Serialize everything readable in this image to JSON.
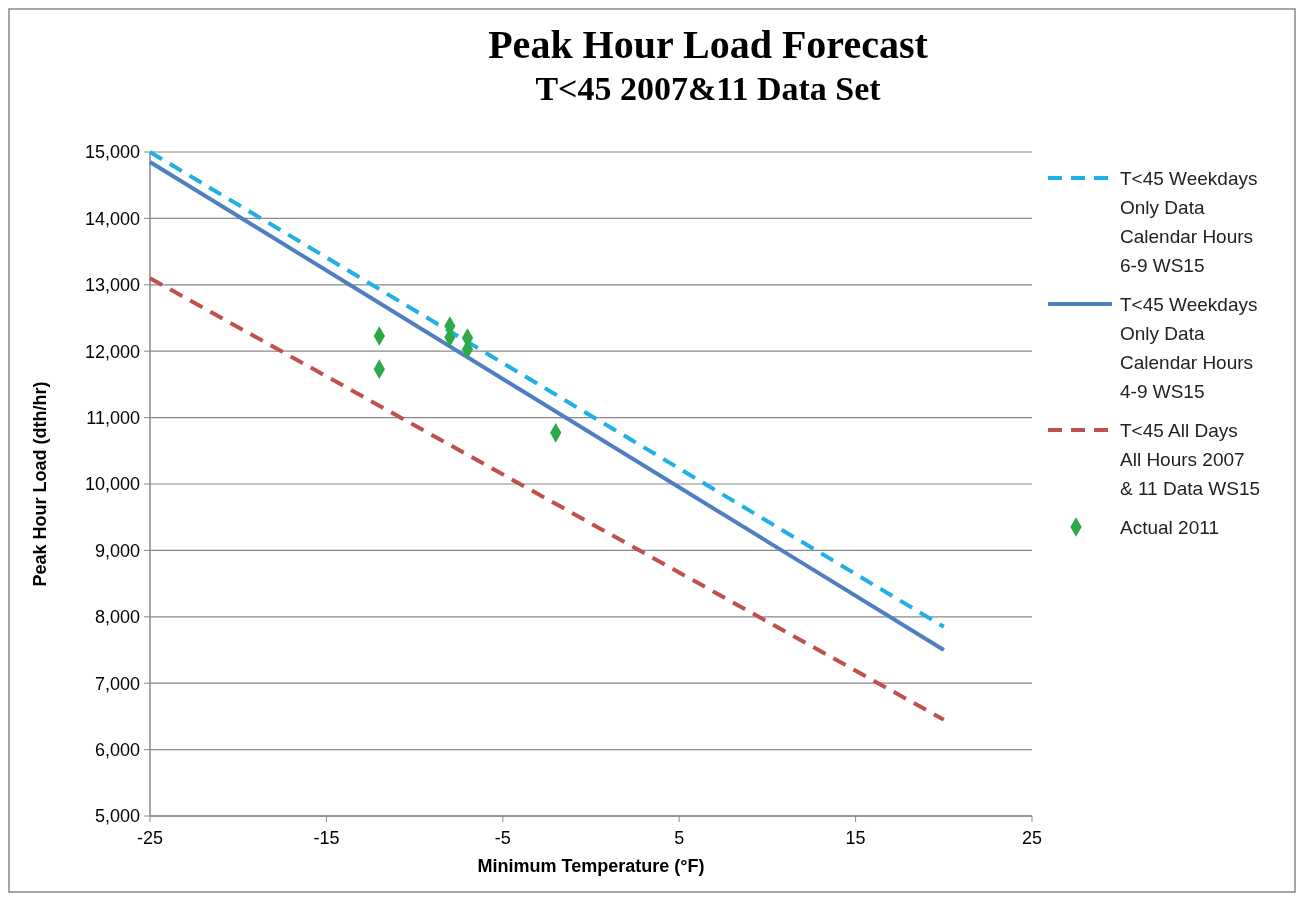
{
  "chart_data": {
    "type": "line",
    "title": "Peak Hour Load Forecast",
    "subtitle": "T<45 2007&11 Data Set",
    "xlabel": "Minimum Temperature (°F)",
    "ylabel": "Peak Hour Load (dth/hr)",
    "xlim": [
      -25,
      25
    ],
    "xticks": [
      -25,
      -15,
      -5,
      5,
      15,
      25
    ],
    "ylim": [
      5000,
      15000
    ],
    "yticks": [
      {
        "value": 5000,
        "label": "5,000"
      },
      {
        "value": 6000,
        "label": "6,000"
      },
      {
        "value": 7000,
        "label": "7,000"
      },
      {
        "value": 8000,
        "label": "8,000"
      },
      {
        "value": 9000,
        "label": "9,000"
      },
      {
        "value": 10000,
        "label": "10,000"
      },
      {
        "value": 11000,
        "label": "11,000"
      },
      {
        "value": 12000,
        "label": "12,000"
      },
      {
        "value": 13000,
        "label": "13,000"
      },
      {
        "value": 14000,
        "label": "14,000"
      },
      {
        "value": 15000,
        "label": "15,000"
      }
    ],
    "grid": "y",
    "legend": "right",
    "series": [
      {
        "name": "T<45 Weekdays Only Data Calendar Hours 6-9 WS15",
        "color": "#1fb0e6",
        "line_style": "dashed",
        "marker": "none",
        "x": [
          -25,
          20
        ],
        "values": [
          15000,
          7850
        ]
      },
      {
        "name": "T<45 Weekdays Only Data Calendar Hours 4-9 WS15",
        "color": "#4f7fc0",
        "line_style": "solid",
        "marker": "none",
        "x": [
          -25,
          20
        ],
        "values": [
          14850,
          7500
        ]
      },
      {
        "name": "T<45 All Days All Hours 2007 & 11 Data WS15",
        "color": "#c0504d",
        "line_style": "dashed",
        "marker": "none",
        "x": [
          -25,
          20
        ],
        "values": [
          13100,
          6450
        ]
      },
      {
        "name": "Actual 2011",
        "type": "scatter",
        "color": "#2aaa48",
        "marker": "diamond",
        "x": [
          -12,
          -12,
          -8,
          -8,
          -7,
          -7,
          -2
        ],
        "values": [
          12230,
          11730,
          12380,
          12210,
          12200,
          12030,
          10770
        ]
      }
    ]
  }
}
